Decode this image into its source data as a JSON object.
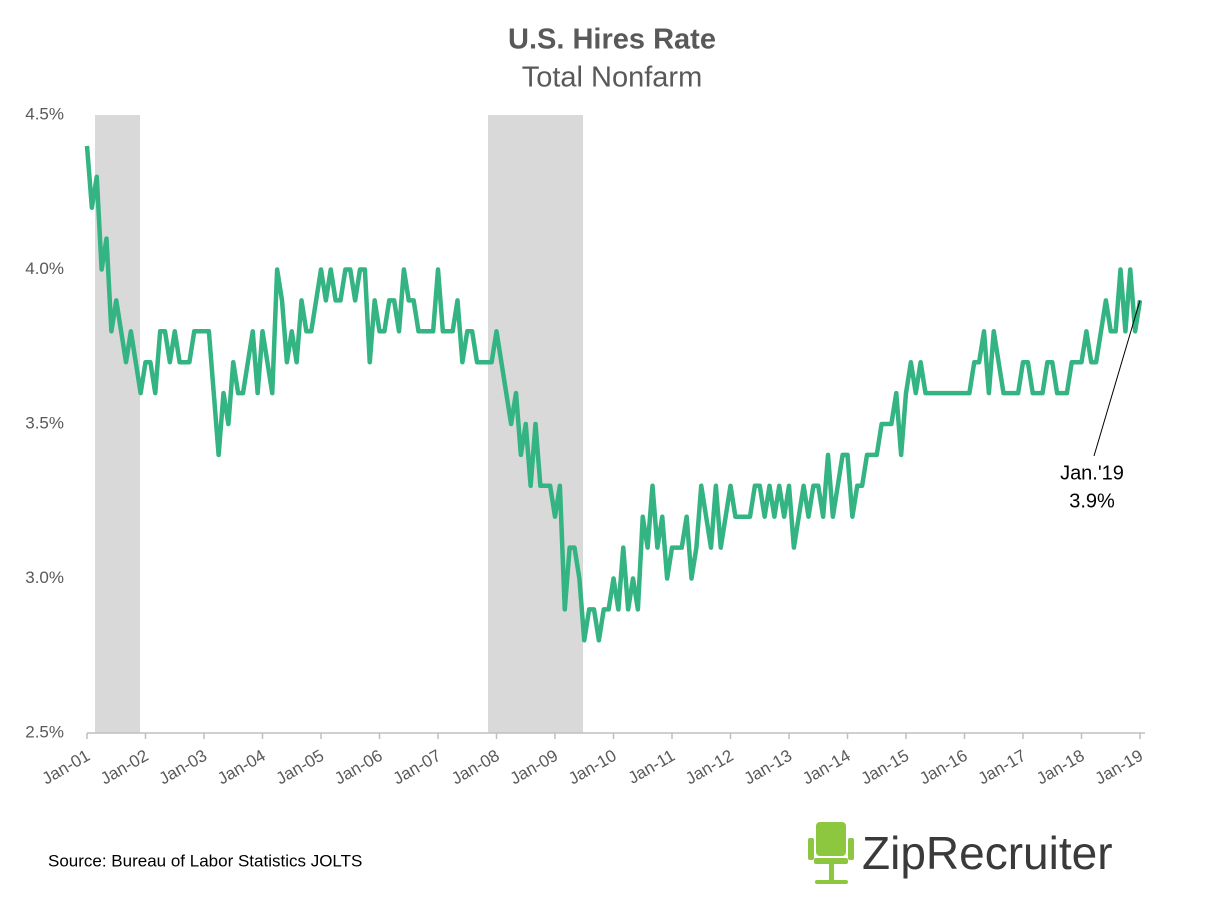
{
  "chart_data": {
    "type": "line",
    "title": "U.S. Hires Rate",
    "subtitle": "Total Nonfarm",
    "categories": [
      "Jan-01",
      null,
      null,
      null,
      null,
      null,
      null,
      null,
      null,
      null,
      null,
      null,
      "Jan-02",
      null,
      null,
      null,
      null,
      null,
      null,
      null,
      null,
      null,
      null,
      null,
      "Jan-03",
      null,
      null,
      null,
      null,
      null,
      null,
      null,
      null,
      null,
      null,
      null,
      "Jan-04",
      null,
      null,
      null,
      null,
      null,
      null,
      null,
      null,
      null,
      null,
      null,
      "Jan-05",
      null,
      null,
      null,
      null,
      null,
      null,
      null,
      null,
      null,
      null,
      null,
      "Jan-06",
      null,
      null,
      null,
      null,
      null,
      null,
      null,
      null,
      null,
      null,
      null,
      "Jan-07",
      null,
      null,
      null,
      null,
      null,
      null,
      null,
      null,
      null,
      null,
      null,
      "Jan-08",
      null,
      null,
      null,
      null,
      null,
      null,
      null,
      null,
      null,
      null,
      null,
      "Jan-09",
      null,
      null,
      null,
      null,
      null,
      null,
      null,
      null,
      null,
      null,
      null,
      "Jan-10",
      null,
      null,
      null,
      null,
      null,
      null,
      null,
      null,
      null,
      null,
      null,
      "Jan-11",
      null,
      null,
      null,
      null,
      null,
      null,
      null,
      null,
      null,
      null,
      null,
      "Jan-12",
      null,
      null,
      null,
      null,
      null,
      null,
      null,
      null,
      null,
      null,
      null,
      "Jan-13",
      null,
      null,
      null,
      null,
      null,
      null,
      null,
      null,
      null,
      null,
      null,
      "Jan-14",
      null,
      null,
      null,
      null,
      null,
      null,
      null,
      null,
      null,
      null,
      null,
      "Jan-15",
      null,
      null,
      null,
      null,
      null,
      null,
      null,
      null,
      null,
      null,
      null,
      "Jan-16",
      null,
      null,
      null,
      null,
      null,
      null,
      null,
      null,
      null,
      null,
      null,
      "Jan-17",
      null,
      null,
      null,
      null,
      null,
      null,
      null,
      null,
      null,
      null,
      null,
      "Jan-18",
      null,
      null,
      null,
      null,
      null,
      null,
      null,
      null,
      null,
      null,
      null,
      "Jan-19"
    ],
    "values": [
      4.4,
      4.2,
      4.3,
      4.0,
      4.1,
      3.8,
      3.9,
      3.8,
      3.7,
      3.8,
      3.7,
      3.6,
      3.7,
      3.7,
      3.6,
      3.8,
      3.8,
      3.7,
      3.8,
      3.7,
      3.7,
      3.7,
      3.8,
      3.8,
      3.8,
      3.8,
      3.6,
      3.4,
      3.6,
      3.5,
      3.7,
      3.6,
      3.6,
      3.7,
      3.8,
      3.6,
      3.8,
      3.7,
      3.6,
      4.0,
      3.9,
      3.7,
      3.8,
      3.7,
      3.9,
      3.8,
      3.8,
      3.9,
      4.0,
      3.9,
      4.0,
      3.9,
      3.9,
      4.0,
      4.0,
      3.9,
      4.0,
      4.0,
      3.7,
      3.9,
      3.8,
      3.8,
      3.9,
      3.9,
      3.8,
      4.0,
      3.9,
      3.9,
      3.8,
      3.8,
      3.8,
      3.8,
      4.0,
      3.8,
      3.8,
      3.8,
      3.9,
      3.7,
      3.8,
      3.8,
      3.7,
      3.7,
      3.7,
      3.7,
      3.8,
      3.7,
      3.6,
      3.5,
      3.6,
      3.4,
      3.5,
      3.3,
      3.5,
      3.3,
      3.3,
      3.3,
      3.2,
      3.3,
      2.9,
      3.1,
      3.1,
      3.0,
      2.8,
      2.9,
      2.9,
      2.8,
      2.9,
      2.9,
      3.0,
      2.9,
      3.1,
      2.9,
      3.0,
      2.9,
      3.2,
      3.1,
      3.3,
      3.1,
      3.2,
      3.0,
      3.1,
      3.1,
      3.1,
      3.2,
      3.0,
      3.1,
      3.3,
      3.2,
      3.1,
      3.3,
      3.1,
      3.2,
      3.3,
      3.2,
      3.2,
      3.2,
      3.2,
      3.3,
      3.3,
      3.2,
      3.3,
      3.2,
      3.3,
      3.2,
      3.3,
      3.1,
      3.2,
      3.3,
      3.2,
      3.3,
      3.3,
      3.2,
      3.4,
      3.2,
      3.3,
      3.4,
      3.4,
      3.2,
      3.3,
      3.3,
      3.4,
      3.4,
      3.4,
      3.5,
      3.5,
      3.5,
      3.6,
      3.4,
      3.6,
      3.7,
      3.6,
      3.7,
      3.6,
      3.6,
      3.6,
      3.6,
      3.6,
      3.6,
      3.6,
      3.6,
      3.6,
      3.6,
      3.7,
      3.7,
      3.8,
      3.6,
      3.8,
      3.7,
      3.6,
      3.6,
      3.6,
      3.6,
      3.7,
      3.7,
      3.6,
      3.6,
      3.6,
      3.7,
      3.7,
      3.6,
      3.6,
      3.6,
      3.7,
      3.7,
      3.7,
      3.8,
      3.7,
      3.7,
      3.8,
      3.9,
      3.8,
      3.8,
      4.0,
      3.8,
      4.0,
      3.8,
      3.9
    ],
    "color": "#34b383",
    "ylim": [
      2.5,
      4.5
    ],
    "yticks": [
      {
        "value": 2.5,
        "label": "2.5%"
      },
      {
        "value": 3.0,
        "label": "3.0%"
      },
      {
        "value": 3.5,
        "label": "3.5%"
      },
      {
        "value": 4.0,
        "label": "4.0%"
      },
      {
        "value": 4.5,
        "label": "4.5%"
      }
    ],
    "annotation": [
      "Jan.'19",
      "3.9%"
    ],
    "source": "Source: Bureau of Labor Statistics JOLTS",
    "logo": "ZipRecruiter"
  }
}
